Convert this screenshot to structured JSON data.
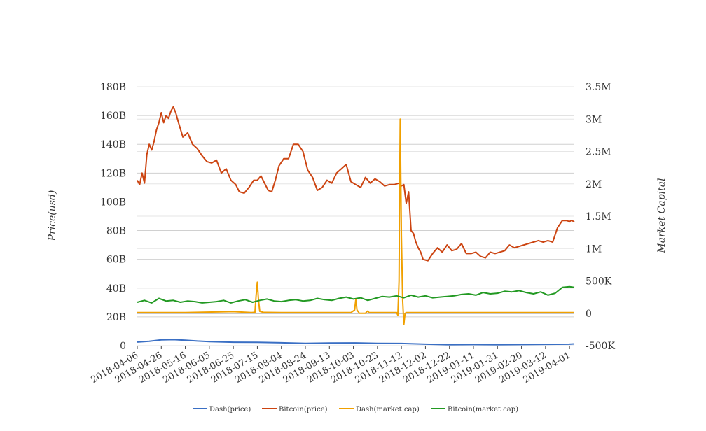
{
  "chart_data": {
    "type": "line",
    "title": "",
    "ylabel_left": "Price(usd)",
    "ylabel_right": "Market Capital",
    "y_left_ticks": [
      "0",
      "20B",
      "40B",
      "60B",
      "80B",
      "100B",
      "120B",
      "140B",
      "160B",
      "180B"
    ],
    "y_left_range": [
      0,
      180
    ],
    "y_left_unit": "B",
    "y_right_ticks": [
      "-500K",
      "0",
      "500K",
      "1M",
      "1.5M",
      "2M",
      "2.5M",
      "3M",
      "3.5M"
    ],
    "y_right_range": [
      -500000,
      3500000
    ],
    "x_ticks": [
      "2018-04-06",
      "2018-04-26",
      "2018-05-16",
      "2018-06-05",
      "2018-06-25",
      "2018-07-15",
      "2018-08-04",
      "2018-08-24",
      "2018-09-13",
      "2018-10-03",
      "2018-10-23",
      "2018-11-12",
      "2018-12-02",
      "2018-12-22",
      "2019-01-11",
      "2019-01-31",
      "2019-02-20",
      "2019-03-12",
      "2019-04-01"
    ],
    "x_range": [
      "2018-04-06",
      "2019-04-05"
    ],
    "grid": true,
    "legend_position": "bottom",
    "series": [
      {
        "name": "Dash(price)",
        "axis": "left",
        "color": "#3a6fc4",
        "x": [
          "2018-04-06",
          "2018-04-16",
          "2018-04-26",
          "2018-05-06",
          "2018-05-16",
          "2018-05-26",
          "2018-06-05",
          "2018-06-25",
          "2018-07-15",
          "2018-08-04",
          "2018-08-24",
          "2018-09-13",
          "2018-10-03",
          "2018-10-23",
          "2018-11-12",
          "2018-12-02",
          "2018-12-22",
          "2019-01-11",
          "2019-01-31",
          "2019-02-20",
          "2019-03-12",
          "2019-04-01",
          "2019-04-05"
        ],
        "values": [
          2.5,
          3.0,
          4.0,
          4.2,
          3.8,
          3.2,
          2.8,
          2.4,
          2.3,
          2.0,
          1.6,
          1.8,
          1.9,
          1.6,
          1.5,
          1.0,
          0.7,
          0.8,
          0.7,
          0.8,
          0.9,
          1.0,
          1.2
        ]
      },
      {
        "name": "Bitcoin(price)",
        "axis": "left",
        "color": "#cc4411",
        "x": [
          "2018-04-06",
          "2018-04-08",
          "2018-04-10",
          "2018-04-12",
          "2018-04-14",
          "2018-04-16",
          "2018-04-18",
          "2018-04-20",
          "2018-04-22",
          "2018-04-24",
          "2018-04-26",
          "2018-04-28",
          "2018-04-30",
          "2018-05-02",
          "2018-05-04",
          "2018-05-06",
          "2018-05-08",
          "2018-05-10",
          "2018-05-14",
          "2018-05-18",
          "2018-05-22",
          "2018-05-26",
          "2018-05-30",
          "2018-06-03",
          "2018-06-07",
          "2018-06-11",
          "2018-06-15",
          "2018-06-19",
          "2018-06-23",
          "2018-06-27",
          "2018-06-30",
          "2018-07-04",
          "2018-07-08",
          "2018-07-12",
          "2018-07-15",
          "2018-07-18",
          "2018-07-21",
          "2018-07-24",
          "2018-07-27",
          "2018-07-30",
          "2018-08-02",
          "2018-08-06",
          "2018-08-10",
          "2018-08-14",
          "2018-08-18",
          "2018-08-22",
          "2018-08-26",
          "2018-08-30",
          "2018-09-03",
          "2018-09-07",
          "2018-09-11",
          "2018-09-15",
          "2018-09-19",
          "2018-09-23",
          "2018-09-27",
          "2018-10-01",
          "2018-10-05",
          "2018-10-09",
          "2018-10-13",
          "2018-10-17",
          "2018-10-21",
          "2018-10-25",
          "2018-10-29",
          "2018-11-02",
          "2018-11-06",
          "2018-11-10",
          "2018-11-12",
          "2018-11-14",
          "2018-11-16",
          "2018-11-18",
          "2018-11-20",
          "2018-11-22",
          "2018-11-24",
          "2018-11-26",
          "2018-11-28",
          "2018-11-30",
          "2018-12-04",
          "2018-12-08",
          "2018-12-12",
          "2018-12-16",
          "2018-12-20",
          "2018-12-24",
          "2018-12-28",
          "2019-01-01",
          "2019-01-05",
          "2019-01-09",
          "2019-01-13",
          "2019-01-17",
          "2019-01-21",
          "2019-01-25",
          "2019-01-29",
          "2019-02-02",
          "2019-02-06",
          "2019-02-10",
          "2019-02-14",
          "2019-02-18",
          "2019-02-22",
          "2019-02-26",
          "2019-03-02",
          "2019-03-06",
          "2019-03-10",
          "2019-03-14",
          "2019-03-18",
          "2019-03-22",
          "2019-03-26",
          "2019-03-30",
          "2019-04-01",
          "2019-04-02",
          "2019-04-03",
          "2019-04-05"
        ],
        "values": [
          115,
          112,
          120,
          113,
          133,
          140,
          136,
          142,
          150,
          155,
          162,
          155,
          160,
          158,
          163,
          166,
          162,
          156,
          145,
          148,
          140,
          137,
          132,
          128,
          127,
          129,
          120,
          123,
          115,
          112,
          107,
          106,
          110,
          115,
          115,
          118,
          113,
          108,
          107,
          115,
          125,
          130,
          130,
          140,
          140,
          135,
          122,
          117,
          108,
          110,
          115,
          113,
          120,
          123,
          126,
          114,
          112,
          110,
          117,
          113,
          116,
          114,
          111,
          112,
          112,
          113,
          111,
          112,
          99,
          107,
          80,
          78,
          72,
          68,
          65,
          60,
          59,
          64,
          68,
          65,
          70,
          66,
          67,
          71,
          64,
          64,
          65,
          62,
          61,
          65,
          64,
          65,
          66,
          70,
          68,
          69,
          70,
          71,
          72,
          73,
          72,
          73,
          72,
          82,
          87,
          87,
          86,
          87,
          87,
          86
        ]
      },
      {
        "name": "Dash(market cap)",
        "axis": "right",
        "color": "#f0a000",
        "x": [
          "2018-04-06",
          "2018-05-16",
          "2018-06-25",
          "2018-07-10",
          "2018-07-13",
          "2018-07-14",
          "2018-07-15",
          "2018-07-16",
          "2018-07-17",
          "2018-07-20",
          "2018-08-04",
          "2018-09-13",
          "2018-10-01",
          "2018-10-04",
          "2018-10-05",
          "2018-10-06",
          "2018-10-08",
          "2018-10-13",
          "2018-10-14",
          "2018-10-15",
          "2018-10-16",
          "2018-11-08",
          "2018-11-09",
          "2018-11-10",
          "2018-11-11",
          "2018-11-12",
          "2018-11-13",
          "2018-11-14",
          "2018-11-15",
          "2018-11-16",
          "2018-11-18",
          "2018-11-20",
          "2018-12-02",
          "2019-02-20",
          "2019-04-05"
        ],
        "values": [
          10000,
          10000,
          25000,
          10000,
          15000,
          280000,
          480000,
          200000,
          30000,
          15000,
          10000,
          10000,
          10000,
          50000,
          210000,
          50000,
          0,
          0,
          20000,
          35000,
          10000,
          10000,
          -30000,
          500000,
          3000000,
          1200000,
          200000,
          -170000,
          0,
          10000,
          10000,
          10000,
          10000,
          10000,
          10000
        ]
      },
      {
        "name": "Bitcoin(market cap)",
        "axis": "right",
        "color": "#229922",
        "x": [
          "2018-04-06",
          "2018-04-12",
          "2018-04-18",
          "2018-04-24",
          "2018-04-30",
          "2018-05-06",
          "2018-05-12",
          "2018-05-18",
          "2018-05-24",
          "2018-05-30",
          "2018-06-05",
          "2018-06-11",
          "2018-06-17",
          "2018-06-23",
          "2018-06-29",
          "2018-07-05",
          "2018-07-11",
          "2018-07-17",
          "2018-07-23",
          "2018-07-29",
          "2018-08-04",
          "2018-08-10",
          "2018-08-16",
          "2018-08-22",
          "2018-08-28",
          "2018-09-03",
          "2018-09-09",
          "2018-09-15",
          "2018-09-21",
          "2018-09-27",
          "2018-10-03",
          "2018-10-09",
          "2018-10-15",
          "2018-10-21",
          "2018-10-27",
          "2018-11-02",
          "2018-11-08",
          "2018-11-14",
          "2018-11-20",
          "2018-11-26",
          "2018-12-02",
          "2018-12-08",
          "2018-12-14",
          "2018-12-20",
          "2018-12-26",
          "2019-01-01",
          "2019-01-07",
          "2019-01-13",
          "2019-01-19",
          "2019-01-25",
          "2019-01-31",
          "2019-02-06",
          "2019-02-12",
          "2019-02-18",
          "2019-02-24",
          "2019-03-02",
          "2019-03-08",
          "2019-03-14",
          "2019-03-20",
          "2019-03-26",
          "2019-04-01",
          "2019-04-05"
        ],
        "values": [
          170000,
          200000,
          160000,
          230000,
          190000,
          200000,
          170000,
          190000,
          180000,
          160000,
          170000,
          180000,
          200000,
          160000,
          190000,
          210000,
          170000,
          200000,
          220000,
          190000,
          180000,
          200000,
          210000,
          190000,
          200000,
          230000,
          210000,
          200000,
          230000,
          250000,
          220000,
          240000,
          200000,
          230000,
          260000,
          250000,
          270000,
          240000,
          280000,
          250000,
          270000,
          240000,
          250000,
          260000,
          270000,
          290000,
          300000,
          280000,
          320000,
          300000,
          310000,
          340000,
          330000,
          350000,
          320000,
          300000,
          330000,
          280000,
          310000,
          400000,
          410000,
          400000
        ]
      }
    ]
  }
}
